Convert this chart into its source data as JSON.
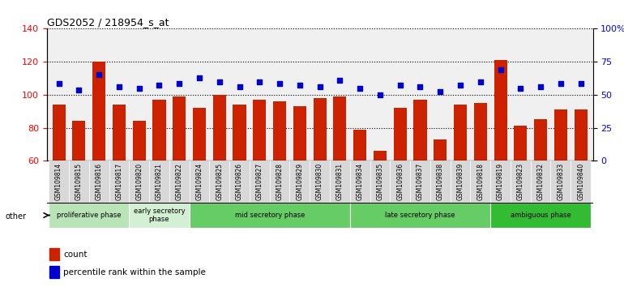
{
  "title": "GDS2052 / 218954_s_at",
  "samples": [
    "GSM109814",
    "GSM109815",
    "GSM109816",
    "GSM109817",
    "GSM109820",
    "GSM109821",
    "GSM109822",
    "GSM109824",
    "GSM109825",
    "GSM109826",
    "GSM109827",
    "GSM109828",
    "GSM109829",
    "GSM109830",
    "GSM109831",
    "GSM109834",
    "GSM109835",
    "GSM109836",
    "GSM109837",
    "GSM109838",
    "GSM109839",
    "GSM109818",
    "GSM109819",
    "GSM109823",
    "GSM109832",
    "GSM109833",
    "GSM109840"
  ],
  "counts": [
    94,
    84,
    120,
    94,
    84,
    97,
    99,
    92,
    100,
    94,
    97,
    96,
    93,
    98,
    99,
    79,
    66,
    92,
    97,
    73,
    94,
    95,
    121,
    81,
    85,
    91,
    91
  ],
  "percentile_raw": [
    107,
    103,
    112,
    105,
    104,
    106,
    107,
    110,
    108,
    105,
    108,
    107,
    106,
    105,
    109,
    104,
    100,
    106,
    105,
    102,
    106,
    108,
    115,
    104,
    105,
    107,
    107
  ],
  "bar_color": "#cc2200",
  "dot_color": "#0000cc",
  "ylim_left": [
    60,
    140
  ],
  "ylim_right": [
    0,
    100
  ],
  "yticks_left": [
    60,
    80,
    100,
    120,
    140
  ],
  "yticks_right": [
    0,
    25,
    50,
    75,
    100
  ],
  "ytick_right_labels": [
    "0",
    "25",
    "50",
    "75",
    "100%"
  ],
  "phase_configs": [
    {
      "label": "proliferative phase",
      "start": 0,
      "end": 4,
      "color": "#b8e4b8"
    },
    {
      "label": "early secretory\nphase",
      "start": 4,
      "end": 7,
      "color": "#d4f0d4"
    },
    {
      "label": "mid secretory phase",
      "start": 7,
      "end": 15,
      "color": "#66cc66"
    },
    {
      "label": "late secretory phase",
      "start": 15,
      "end": 22,
      "color": "#66cc66"
    },
    {
      "label": "ambiguous phase",
      "start": 22,
      "end": 27,
      "color": "#33bb33"
    }
  ],
  "other_label": "other",
  "legend_count_label": "count",
  "legend_pct_label": "percentile rank within the sample",
  "background_color": "#ffffff",
  "plot_bg_color": "#f0f0f0",
  "tick_bg_color": "#d8d8d8"
}
